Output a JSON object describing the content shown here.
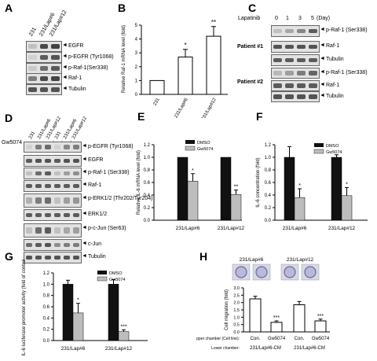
{
  "panels": {
    "A": {
      "letter": "A",
      "lanes": [
        "231",
        "231/Lap#6",
        "231/Lap#12"
      ],
      "bands": [
        "EGFR",
        "p-EGFR (Tyr1068)",
        "p-Raf-1(Ser338)",
        "Raf-1",
        "Tubulin"
      ]
    },
    "B": {
      "letter": "B",
      "ylabel": "Relative Raf-1 mRNA level (fold)",
      "categories": [
        "231",
        "231/Lap#6",
        "231/Lap#12"
      ],
      "yticks": [
        "0",
        "1",
        "2",
        "3",
        "4",
        "5"
      ],
      "stars": [
        "",
        "*",
        "**"
      ]
    },
    "C": {
      "letter": "C",
      "treatment": "Lapatinib",
      "days": [
        "0",
        "1",
        "3",
        "5"
      ],
      "unit": "(Day)",
      "patient1": "Patient #1",
      "patient2": "Patient #2",
      "bands1": [
        "p-Raf-1 (Ser338)",
        "Raf-1",
        "Tubulin"
      ],
      "bands2": [
        "p-Raf-1 (Ser338)",
        "Raf-1",
        "Tubulin"
      ]
    },
    "D": {
      "letter": "D",
      "lanes": [
        "231",
        "231/Lap#6",
        "231/Lap#12",
        "231",
        "231/Lap#6",
        "231/Lap#12"
      ],
      "gw": "Gw5074",
      "signs": [
        "-",
        "-",
        "-",
        "+",
        "+",
        "+"
      ],
      "bands": [
        "p-EGFR (Tyr1068)",
        "EGFR",
        "p-Raf-1 (Ser338)",
        "Raf-1",
        "p-ERK1/2 (Thr202/Tyr204)",
        "ERK1/2",
        "p-c-Jun (Ser63)",
        "c-Jun",
        "Tubulin"
      ]
    },
    "E": {
      "letter": "E",
      "ylabel": "Relative IL-6 mRNA level (fold)",
      "legend": [
        "DMSO",
        "Gw5074"
      ],
      "groups": [
        "231/Lap#6",
        "231/Lap#12"
      ],
      "yticks": [
        "0.0",
        "0.2",
        "0.4",
        "0.6",
        "0.8",
        "1.0",
        "1.2"
      ],
      "stars": [
        "*",
        "**"
      ]
    },
    "F": {
      "letter": "F",
      "ylabel": "IL-6 concentration (fold)",
      "legend": [
        "DMSO",
        "Gw5074"
      ],
      "groups": [
        "231/Lap#6",
        "231/Lap#12"
      ],
      "yticks": [
        "0.0",
        "0.2",
        "0.4",
        "0.6",
        "0.8",
        "1.0",
        "1.2"
      ],
      "stars": [
        "*",
        "*"
      ]
    },
    "G": {
      "letter": "G",
      "ylabel": "IL-6 luciferase promoter activity (fold of control)",
      "legend": [
        "DMSO",
        "Gw5074"
      ],
      "groups": [
        "231/Lap#6",
        "231/Lap#12"
      ],
      "yticks": [
        "0.0",
        "0.2",
        "0.4",
        "0.6",
        "0.8",
        "1.0",
        "1.2"
      ],
      "stars": [
        "*",
        "***"
      ]
    },
    "H": {
      "letter": "H",
      "ylabel": "Cell migration (fold)",
      "image_groups": [
        "231/Lap#6",
        "231/Lap#12"
      ],
      "categories": [
        "Con.",
        "Gw5074",
        "Con.",
        "Gw5074"
      ],
      "yticks": [
        "0.0",
        "0.5",
        "1.0",
        "1.5",
        "2.0",
        "2.5",
        "3.0"
      ],
      "stars": [
        "",
        "***",
        "",
        "***"
      ],
      "upper_label": "Upper chamber (Cell line):",
      "lower_label": "Lower chamber:",
      "lower_values": [
        "231/Lap#6-CM",
        "231/Lap#6-CM"
      ]
    }
  },
  "colors": {
    "black_bar": "#111111",
    "gray_bar": "#bdbdbd",
    "white_bar": "#ffffff"
  },
  "chart_data": [
    {
      "panel": "B",
      "type": "bar",
      "categories": [
        "231",
        "231/Lap#6",
        "231/Lap#12"
      ],
      "values": [
        1.0,
        2.7,
        4.2
      ],
      "errors": [
        0,
        0.55,
        0.7
      ],
      "ylim": [
        0,
        5
      ],
      "ylabel": "Relative Raf-1 mRNA level (fold)"
    },
    {
      "panel": "E",
      "type": "bar",
      "categories": [
        "231/Lap#6",
        "231/Lap#12"
      ],
      "series": [
        {
          "name": "DMSO",
          "values": [
            1.0,
            1.0
          ],
          "errors": [
            0,
            0
          ]
        },
        {
          "name": "Gw5074",
          "values": [
            0.62,
            0.41
          ],
          "errors": [
            0.12,
            0.07
          ]
        }
      ],
      "ylim": [
        0,
        1.2
      ],
      "ylabel": "Relative IL-6 mRNA level (fold)"
    },
    {
      "panel": "F",
      "type": "bar",
      "categories": [
        "231/Lap#6",
        "231/Lap#12"
      ],
      "series": [
        {
          "name": "DMSO",
          "values": [
            1.0,
            1.0
          ],
          "errors": [
            0.17,
            0.04
          ]
        },
        {
          "name": "Gw5074",
          "values": [
            0.36,
            0.39
          ],
          "errors": [
            0.14,
            0.13
          ]
        }
      ],
      "ylim": [
        0,
        1.2
      ],
      "ylabel": "IL-6 concentration (fold)"
    },
    {
      "panel": "G",
      "type": "bar",
      "categories": [
        "231/Lap#6",
        "231/Lap#12"
      ],
      "series": [
        {
          "name": "DMSO",
          "values": [
            1.0,
            1.0
          ],
          "errors": [
            0.07,
            0.08
          ]
        },
        {
          "name": "Gw5074",
          "values": [
            0.49,
            0.16
          ],
          "errors": [
            0.17,
            0.03
          ]
        }
      ],
      "ylim": [
        0,
        1.2
      ],
      "ylabel": "IL-6 luciferase promoter activity (fold of control)"
    },
    {
      "panel": "H",
      "type": "bar",
      "categories": [
        "Con.",
        "Gw5074",
        "Con.",
        "Gw5074"
      ],
      "values": [
        2.25,
        0.65,
        1.85,
        0.75
      ],
      "errors": [
        0.18,
        0.1,
        0.22,
        0.12
      ],
      "ylim": [
        0,
        3.0
      ],
      "ylabel": "Cell migration (fold)"
    }
  ]
}
